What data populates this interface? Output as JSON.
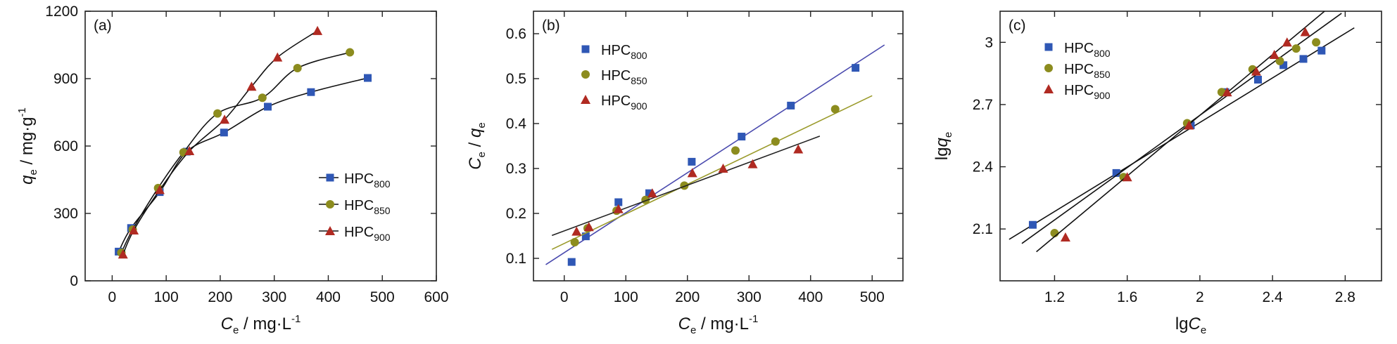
{
  "colors": {
    "HPC800": "#2f57b5",
    "HPC850": "#8c8c1e",
    "HPC900": "#b02a22",
    "axis": "#222222",
    "fit_b_800": "#4a4aae",
    "fit_b_850": "#9a9a2a",
    "fit_b_900": "#222222",
    "fit_c": "#111111"
  },
  "chart_data": [
    {
      "panel": "(a)",
      "type": "line",
      "xlabel_main": "C",
      "xlabel_sub": "e",
      "xlabel_unit": " / mg·L",
      "xlabel_sup": "-1",
      "ylabel_main": "q",
      "ylabel_sub": "e",
      "ylabel_unit": " / mg·g",
      "ylabel_sup": "-1",
      "xlim": [
        -50,
        600
      ],
      "ylim": [
        0,
        1200
      ],
      "xticks": [
        0,
        100,
        200,
        300,
        400,
        500,
        600
      ],
      "yticks": [
        0,
        300,
        600,
        900,
        1200
      ],
      "legend_position": "bottom-right",
      "series": [
        {
          "key": "HPC800",
          "name_main": "HPC",
          "name_sub": "800",
          "marker": "square",
          "x": [
            12,
            35,
            88,
            138,
            207,
            288,
            368,
            473
          ],
          "y": [
            130,
            235,
            395,
            575,
            660,
            775,
            840,
            903
          ]
        },
        {
          "key": "HPC850",
          "name_main": "HPC",
          "name_sub": "850",
          "marker": "circle",
          "x": [
            17,
            38,
            85,
            132,
            195,
            278,
            343,
            440
          ],
          "y": [
            125,
            228,
            413,
            572,
            745,
            815,
            947,
            1017
          ]
        },
        {
          "key": "HPC900",
          "name_main": "HPC",
          "name_sub": "900",
          "marker": "triangle",
          "x": [
            20,
            40,
            88,
            143,
            208,
            258,
            306,
            380
          ],
          "y": [
            118,
            225,
            405,
            578,
            718,
            865,
            995,
            1113
          ]
        }
      ]
    },
    {
      "panel": "(b)",
      "type": "scatter",
      "xlabel_main": "C",
      "xlabel_sub": "e",
      "xlabel_unit": " / mg·L",
      "xlabel_sup": "-1",
      "ylabel_main": "C",
      "ylabel_sub": "e",
      "ylabel_mid": " / ",
      "ylabel_main2": "q",
      "ylabel_sub2": "e",
      "xlim": [
        -50,
        550
      ],
      "ylim": [
        0.05,
        0.65
      ],
      "xticks": [
        0,
        100,
        200,
        300,
        400,
        500
      ],
      "yticks": [
        0.1,
        0.2,
        0.3,
        0.4,
        0.5,
        0.6
      ],
      "legend_position": "top-left",
      "series": [
        {
          "key": "HPC800",
          "name_main": "HPC",
          "name_sub": "800",
          "marker": "square",
          "x": [
            12,
            35,
            88,
            138,
            207,
            288,
            368,
            473
          ],
          "y": [
            0.092,
            0.149,
            0.225,
            0.245,
            0.315,
            0.371,
            0.44,
            0.524
          ],
          "fit": {
            "x": [
              -30,
              520
            ],
            "y": [
              0.086,
              0.575
            ]
          }
        },
        {
          "key": "HPC850",
          "name_main": "HPC",
          "name_sub": "850",
          "marker": "circle",
          "x": [
            17,
            38,
            85,
            132,
            195,
            278,
            343,
            440
          ],
          "y": [
            0.136,
            0.167,
            0.206,
            0.23,
            0.262,
            0.34,
            0.36,
            0.432
          ],
          "fit": {
            "x": [
              -20,
              500
            ],
            "y": [
              0.12,
              0.462
            ]
          }
        },
        {
          "key": "HPC900",
          "name_main": "HPC",
          "name_sub": "900",
          "marker": "triangle",
          "x": [
            20,
            40,
            88,
            143,
            208,
            258,
            306,
            380
          ],
          "y": [
            0.16,
            0.17,
            0.21,
            0.245,
            0.29,
            0.3,
            0.31,
            0.343
          ],
          "fit": {
            "x": [
              -20,
              415
            ],
            "y": [
              0.151,
              0.372
            ]
          }
        }
      ]
    },
    {
      "panel": "(c)",
      "type": "scatter",
      "xlabel_main": "lg",
      "xlabel_ital": "C",
      "xlabel_sub": "e",
      "ylabel_main": "lg",
      "ylabel_ital": "q",
      "ylabel_sub": "e",
      "xlim": [
        0.9,
        3.0
      ],
      "ylim": [
        1.85,
        3.15
      ],
      "xticks": [
        1.2,
        1.6,
        2.0,
        2.4,
        2.8
      ],
      "yticks": [
        2.1,
        2.4,
        2.7,
        3.0
      ],
      "legend_position": "top-left",
      "series": [
        {
          "key": "HPC800",
          "name_main": "HPC",
          "name_sub": "800",
          "marker": "square",
          "x": [
            1.08,
            1.54,
            1.95,
            2.14,
            2.32,
            2.46,
            2.57,
            2.67
          ],
          "y": [
            2.12,
            2.37,
            2.6,
            2.76,
            2.82,
            2.89,
            2.92,
            2.96
          ],
          "fit": {
            "x": [
              0.95,
              2.85
            ],
            "y": [
              2.05,
              3.07
            ]
          }
        },
        {
          "key": "HPC850",
          "name_main": "HPC",
          "name_sub": "850",
          "marker": "circle",
          "x": [
            1.2,
            1.58,
            1.93,
            2.12,
            2.29,
            2.44,
            2.53,
            2.64
          ],
          "y": [
            2.08,
            2.35,
            2.61,
            2.76,
            2.87,
            2.91,
            2.97,
            3.0
          ],
          "fit": {
            "x": [
              1.02,
              2.78
            ],
            "y": [
              2.03,
              3.14
            ]
          }
        },
        {
          "key": "HPC900",
          "name_main": "HPC",
          "name_sub": "900",
          "marker": "triangle",
          "x": [
            1.26,
            1.6,
            1.94,
            2.15,
            2.31,
            2.41,
            2.48,
            2.58
          ],
          "y": [
            2.06,
            2.35,
            2.6,
            2.76,
            2.86,
            2.94,
            3.0,
            3.05
          ],
          "fit": {
            "x": [
              1.1,
              2.7
            ],
            "y": [
              1.99,
              3.16
            ]
          }
        }
      ]
    }
  ]
}
